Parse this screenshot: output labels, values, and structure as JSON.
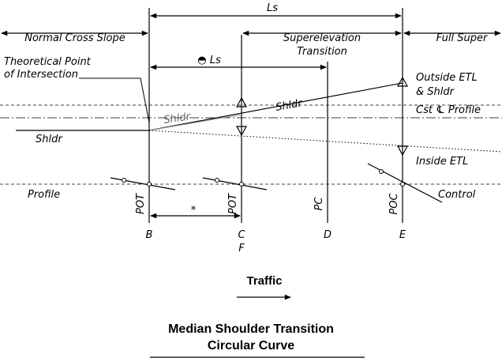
{
  "labels": {
    "ls_top": "Ls",
    "normal": "Normal Cross Slope",
    "super1": "Superelevation",
    "super2": "Transition",
    "full": "Full Super",
    "half_ls": "◓ Ls",
    "tpi1": "Theoretical Point",
    "tpi2": "of Intersection",
    "shldr_upper": "Shldr",
    "shldr_gray": "Shldr",
    "shldr_left": "Shldr",
    "outside1": "Outside ETL",
    "outside2": "& Shldr",
    "cst": "Cst ℄ Profile",
    "inside": "Inside ETL",
    "profile": "Profile",
    "control": "Control",
    "star": "*"
  },
  "stations": [
    {
      "code": "POT",
      "letter": "B"
    },
    {
      "code": "POT",
      "letter": "C",
      "sub": "F"
    },
    {
      "code": "PC",
      "letter": "D"
    },
    {
      "code": "POC",
      "letter": "E"
    }
  ],
  "traffic": "Traffic",
  "title": [
    "Median Shoulder Transition",
    "Circular Curve"
  ]
}
